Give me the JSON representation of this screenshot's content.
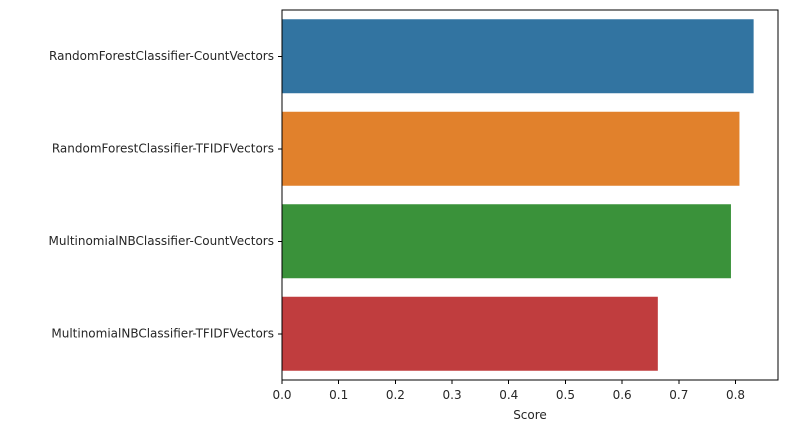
{
  "chart_data": {
    "type": "bar",
    "orientation": "horizontal",
    "categories": [
      "RandomForestClassifier-CountVectors",
      "RandomForestClassifier-TFIDFVectors",
      "MultinomialNBClassifier-CountVectors",
      "MultinomialNBClassifier-TFIDFVectors"
    ],
    "values": [
      0.832,
      0.807,
      0.792,
      0.663
    ],
    "colors": [
      "#3274a1",
      "#e1812c",
      "#3a923a",
      "#c03d3e"
    ],
    "title": "",
    "xlabel": "Score",
    "ylabel": "",
    "xlim": [
      0,
      0.875
    ],
    "xticks": [
      0.0,
      0.1,
      0.2,
      0.3,
      0.4,
      0.5,
      0.6,
      0.7,
      0.8
    ],
    "xtick_labels": [
      "0.0",
      "0.1",
      "0.2",
      "0.3",
      "0.4",
      "0.5",
      "0.6",
      "0.7",
      "0.8"
    ],
    "grid": false,
    "legend": "none"
  }
}
